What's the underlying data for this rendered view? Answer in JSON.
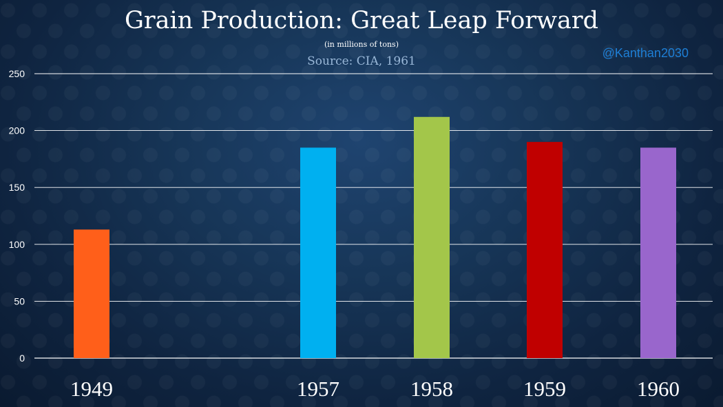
{
  "chart_data": {
    "type": "bar",
    "title": "Grain Production: Great Leap Forward",
    "subtitle": "(in millions of tons)",
    "source": "Source: CIA, 1961",
    "watermark": "@Kanthan2030",
    "categories": [
      "1949",
      "1957",
      "1958",
      "1959",
      "1960"
    ],
    "values": [
      113,
      185,
      212,
      190,
      185
    ],
    "colors": [
      "#ff5f1a",
      "#00b0f0",
      "#a3c64a",
      "#c00000",
      "#9966cc"
    ],
    "yticks": [
      0,
      50,
      100,
      150,
      200,
      250
    ],
    "ylim": [
      0,
      250
    ],
    "xlabel": "",
    "ylabel": "",
    "grid": true
  }
}
